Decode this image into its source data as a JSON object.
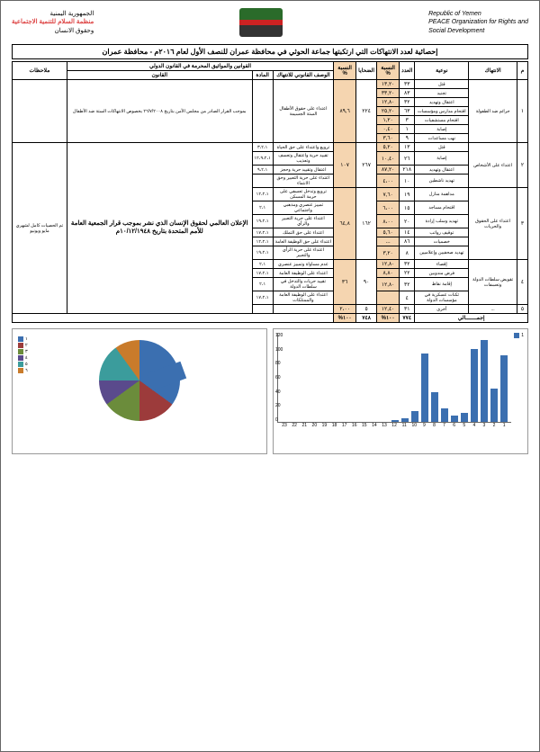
{
  "header": {
    "left_line1": "Republic of Yemen",
    "left_line2": "PEACE Organization for Rights and",
    "left_line3": "Social Development",
    "right_line1": "الجمهورية اليمنية",
    "right_line2": "منظمة السلام للتنمية الاجتماعية",
    "right_line3": "وحقوق الانسان"
  },
  "title": "إحصائية لعدد الانتهاكات التي ارتكبتها جماعة الحوثي في محافظة عمران للنصف الأول لعام ٢٠١٦م - محافظة عمران",
  "thead": {
    "m": "م",
    "violation": "الانتهاك",
    "type": "نوعية",
    "count": "العدد",
    "pct": "النسبة %",
    "victims": "الضحايا",
    "pct2": "النسبة %",
    "intl_group": "القوانين والمواثيق المحرمة في القانون الدولي",
    "legal": "الوصف القانوني للانتهاك",
    "article": "المادة",
    "law": "القانون",
    "notes": "ملاحظات"
  },
  "groups": [
    {
      "m": "١",
      "name": "جرائم ضد الطفولة",
      "total_count": "",
      "total_pct": "",
      "victims": "٢٢٤",
      "pct2": "٨٩,٦",
      "legal": "اعتداء على حقوق الأطفال الستة الجسيمة",
      "article": "",
      "law": "بموجب القرار الصادر من مجلس الأمن بتاريخ ٢٦/٧/٢٠٠٨ بخصوص الانتهاكات الستة ضد الأطفال",
      "notes": "",
      "rows": [
        {
          "type": "قتل",
          "count": "٣٣",
          "pct": "١٣,٢٠"
        },
        {
          "type": "تجنيد",
          "count": "٨٣",
          "pct": "٣٣,٢٠"
        },
        {
          "type": "اعتقال وتهديد",
          "count": "٣٢",
          "pct": "١٢,٨٠"
        },
        {
          "type": "اقتحام مدارس ومؤسسات",
          "count": "٦٣",
          "pct": "٢٥,٢٠"
        },
        {
          "type": "اقتحام مستشفيات",
          "count": "٣",
          "pct": "١,٢٠"
        },
        {
          "type": "إصابة",
          "count": "١",
          "pct": "٠,٤٠"
        },
        {
          "type": "نهب مساعدات",
          "count": "٩",
          "pct": "٣,٦٠"
        }
      ]
    },
    {
      "m": "٢",
      "name": "اعتداء على الأشخاص",
      "victims": "٢٦٧",
      "pct2": "١٠٧",
      "notes": "",
      "law": "الإعلان العالمي لحقوق الإنسان الذي نشر بموجب قرار الجمعية العامة للأمم المتحدة بتاريخ ١٠/١٢/١٩٤٨م",
      "rows": [
        {
          "type": "قتل",
          "count": "١٣",
          "pct": "٥,٢٠",
          "legal": "ترويع واعتداء على حق الحياة",
          "article": "٣،٢،١"
        },
        {
          "type": "إصابة",
          "count": "٢٦",
          "pct": "١٠,٤٠",
          "legal": "تقييد حرية واعتقال وتعسف وتعذيب",
          "article": "١٢،٩،٢،١"
        },
        {
          "type": "اعتقال وتهديد",
          "count": "٢١٨",
          "pct": "٨٧,٢٠",
          "legal": "اعتقال وتقييد حرية وحجز",
          "article": "٩،٢،١"
        },
        {
          "type": "تهديد ناشطين",
          "count": "١٠",
          "pct": "٤،٠٠",
          "legal": "اعتداء على حرية التعبير وحق الانتماء",
          "article": ""
        }
      ]
    },
    {
      "m": "٣",
      "name": "اعتداء على الحقوق والحريات",
      "victims": "١٦٢",
      "pct2": "٦٤,٨",
      "notes": "تم الحصيات كامل لشهري مايو ويونيو",
      "rows": [
        {
          "type": "مداهمة منازل",
          "count": "١٩",
          "pct": "٧,٦٠",
          "legal": "ترويع وتدخل تعسفي على حرمة المسكن",
          "article": "١٢،٢،١"
        },
        {
          "type": "اقتحام مساجد",
          "count": "١٥",
          "pct": "٦،٠٠",
          "legal": "تمييز عنصري ومذهبي واجتماعي",
          "article": "٢،١"
        },
        {
          "type": "تهديد وسلب إرادة",
          "count": "٢٠",
          "pct": "٨،٠٠",
          "legal": "اعتداء على حرية التعبير والرأي",
          "article": "١٩،٢،١"
        },
        {
          "type": "توقيف رواتب",
          "count": "١٤",
          "pct": "٥,٦٠",
          "legal": "اعتداء على حق التملك",
          "article": "١٧،٢،١"
        },
        {
          "type": "خصميات",
          "count": "٨٦",
          "pct": "...",
          "legal": "اعتداء على حق الوظيفة العامة",
          "article": "١٢،٢،١"
        },
        {
          "type": "تهديد صحفيين وإعلاميين",
          "count": "٨",
          "pct": "٣,٢٠",
          "legal": "اعتداء على حرية الرأي والتعبير",
          "article": "١٩،٢،١"
        }
      ]
    },
    {
      "m": "٤",
      "name": "تقويض سلطات الدولة وتعسفات",
      "victims": "٩٠",
      "pct2": "٣٦",
      "notes": "",
      "rows": [
        {
          "type": "إقصاء",
          "count": "٣٢",
          "pct": "١٢,٨٠",
          "legal": "عدم مساواة وتمييز عنصري",
          "article": "٢،١"
        },
        {
          "type": "فرض مندوبين",
          "count": "٢٢",
          "pct": "٨,٨٠",
          "legal": "اعتداء على الوظيفة العامة",
          "article": "١٧،٢،١"
        },
        {
          "type": "إقامة نقاط",
          "count": "٣٢",
          "pct": "١٢,٨٠",
          "legal": "تقييد حريات والتدخل في سلطات الدولة",
          "article": "٢،١"
        },
        {
          "type": "ثكنات عسكرية في مؤسسات الدولة",
          "count": "٤",
          "pct": "",
          "legal": "اعتداء على الوظيفة العامة والممتلكات",
          "article": "١٧،٢،١"
        }
      ]
    },
    {
      "m": "٥",
      "name": "...",
      "victims": "٥",
      "pct2": "٢،٠٠",
      "rows": [
        {
          "type": "أخرى",
          "count": "٣١",
          "pct": "١٢,٤٠",
          "legal": "",
          "article": ""
        }
      ]
    }
  ],
  "totals": {
    "label": "إجمـــــــالي",
    "count": "٧٧٤",
    "pct": "١٠٠%",
    "victims": "٧٤٨",
    "pct2": "١٠٠%"
  },
  "bar_chart": {
    "ymax": 120,
    "ystep": 20,
    "values": [
      0,
      0,
      0,
      0,
      0,
      0,
      0,
      0,
      0,
      0,
      0,
      2,
      5,
      15,
      92,
      40,
      18,
      8,
      12,
      98,
      110,
      45,
      90
    ],
    "color": "#3b6fb0"
  },
  "pie_chart": {
    "legend": [
      "١",
      "٢",
      "٣",
      "٤",
      "٥",
      "٦"
    ],
    "colors": [
      "#3b6fb0",
      "#9c3b3b",
      "#6b8c3b",
      "#5a4a8c",
      "#3b9c9c",
      "#c97b2b"
    ]
  }
}
